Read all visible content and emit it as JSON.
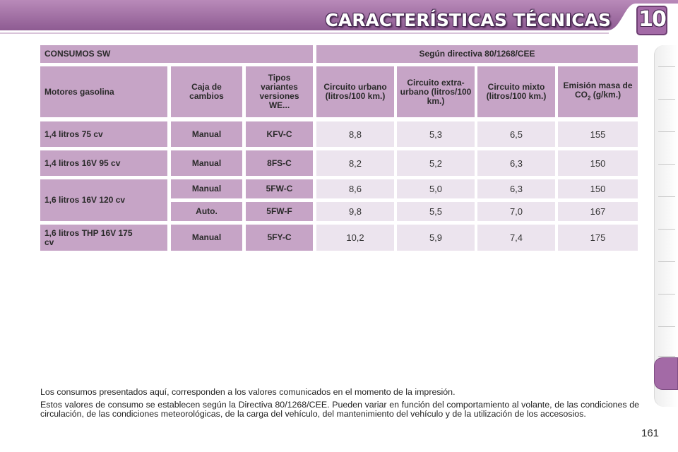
{
  "header": {
    "title": "CARACTERÍSTICAS TÉCNICAS",
    "chapter_number": "10"
  },
  "table": {
    "title": "CONSUMOS SW",
    "directive": "Según directiva 80/1268/CEE",
    "columns": {
      "engine": "Motores gasolina",
      "gearbox": "Caja de cambios",
      "types": "Tipos variantes versiones WE...",
      "urban": "Circuito urbano (litros/100 km.)",
      "extra_urban": "Circuito extra-urbano (litros/100 km.)",
      "mixed": "Circuito mixto (litros/100 km.)",
      "co2_prefix": "Emisión masa de CO",
      "co2_subscript": "2",
      "co2_suffix": " (g/km.)"
    },
    "rows": [
      {
        "engine": "1,4 litros 75 cv",
        "gearbox": "Manual",
        "type": "KFV-C",
        "urban": "8,8",
        "extra_urban": "5,3",
        "mixed": "6,5",
        "co2": "155"
      },
      {
        "engine": "1,4 litros 16V 95 cv",
        "gearbox": "Manual",
        "type": "8FS-C",
        "urban": "8,2",
        "extra_urban": "5,2",
        "mixed": "6,3",
        "co2": "150"
      },
      {
        "engine": "1,6 litros 16V 120 cv",
        "gearbox": "Manual",
        "type": "5FW-C",
        "urban": "8,6",
        "extra_urban": "5,0",
        "mixed": "6,3",
        "co2": "150"
      },
      {
        "engine": "",
        "gearbox": "Auto.",
        "type": "5FW-F",
        "urban": "9,8",
        "extra_urban": "5,5",
        "mixed": "7,0",
        "co2": "167"
      },
      {
        "engine": "1,6 litros THP 16V 175 cv",
        "gearbox": "Manual",
        "type": "5FY-C",
        "urban": "10,2",
        "extra_urban": "5,9",
        "mixed": "7,4",
        "co2": "175"
      }
    ]
  },
  "notes": {
    "line1": "Los consumos presentados aquí, corresponden a los valores comunicados en el momento de la impresión.",
    "line2": "Estos valores de consumo se establecen según la Directiva 80/1268/CEE. Pueden variar en función del comportamiento al volante, de las condiciones de circulación, de las condiciones meteorológicas, de la carga del vehículo, del mantenimiento del vehículo y de la utilización de los accesosios."
  },
  "page_number": "161",
  "colors": {
    "accent": "#a36aa6",
    "header_cell": "#c6a4c6",
    "value_cell": "#ece4ee"
  }
}
